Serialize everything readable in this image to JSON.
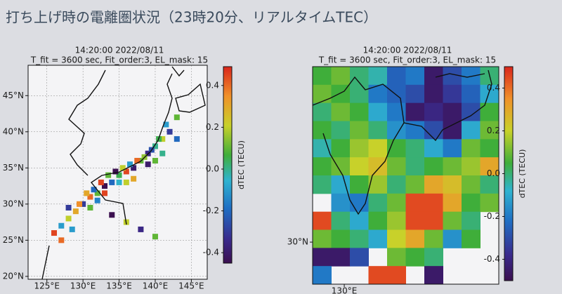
{
  "title": "打ち上げ時の電離圏状況（23時20分、リアルタイムTEC）",
  "panels": [
    {
      "time": "14:20:00 2022/08/11",
      "settings": "T_fit = 3600 sec, Fit_order:3, EL_mask: 15",
      "colorbar_label": "dTEC (TECU)",
      "clim": [
        -0.45,
        0.49
      ],
      "cticks": [
        0.4,
        0.2,
        {
          "value": 0,
          "label": "0.0"
        },
        -0.2,
        -0.4
      ],
      "xlim": [
        122.4,
        147.2
      ],
      "ylim": [
        19.6,
        49.2
      ],
      "xticks": [
        {
          "value": 125,
          "label": "125°E"
        },
        {
          "value": 130,
          "label": "130°E"
        },
        {
          "value": 135,
          "label": "135°E"
        },
        {
          "value": 140,
          "label": "140°E"
        },
        {
          "value": 145,
          "label": "145°E"
        }
      ],
      "yticks": [
        {
          "value": 45,
          "label": "45°N"
        },
        {
          "value": 40,
          "label": "40°N"
        },
        {
          "value": 35,
          "label": "35°N"
        },
        {
          "value": 30,
          "label": "30°N"
        },
        {
          "value": 25,
          "label": "25°N"
        },
        {
          "value": 20,
          "label": "20°N"
        }
      ],
      "lon": [
        126,
        127,
        128,
        129,
        130,
        131,
        132,
        133,
        134,
        135,
        136,
        137,
        138,
        139,
        140,
        141,
        142,
        143,
        130.5,
        131.5,
        132.5,
        133.5,
        134.5,
        135.5,
        136.5,
        137.5,
        138.5,
        139.5,
        140.5,
        141.5,
        128,
        129.5,
        131,
        132,
        133,
        135,
        136,
        137,
        139,
        140,
        141,
        143,
        127,
        128.5,
        134,
        136,
        138,
        140
      ],
      "lat": [
        26,
        27,
        28,
        29,
        30,
        31,
        31.5,
        32.5,
        33,
        34,
        34.5,
        35,
        36,
        37,
        38,
        39,
        40,
        42,
        31.5,
        32,
        33,
        34,
        34.5,
        35,
        35.5,
        36,
        36.5,
        37.5,
        39,
        41,
        29.5,
        30,
        29.5,
        30.5,
        31.5,
        33,
        33,
        33.5,
        35.5,
        36,
        37,
        39,
        25,
        26.5,
        28.5,
        27.5,
        26.5,
        25.5
      ],
      "dtec": [
        0.45,
        -0.1,
        0.2,
        0.3,
        -0.3,
        0.4,
        0.1,
        -0.45,
        -0.2,
        0.05,
        0.45,
        -0.4,
        0.1,
        -0.35,
        0,
        0.2,
        -0.3,
        0.1,
        0.3,
        -0.2,
        0.45,
        0.1,
        -0.45,
        0.2,
        -0.1,
        0.4,
        0.15,
        -0.25,
        0.05,
        -0.1,
        -0.3,
        0.35,
        0.1,
        -0.15,
        0.45,
        -0.05,
        0.2,
        0.3,
        -0.4,
        0.1,
        0,
        -0.2,
        0.4,
        -0.1,
        -0.45,
        0.2,
        -0.35,
        0.1
      ]
    },
    {
      "time": "14:20:00 2022/08/11",
      "settings": "T_fit = 3600 sec, Fit_order:3, EL_mask: 15",
      "colorbar_label": "dTEC (TECU)",
      "clim": [
        -0.5,
        0.5
      ],
      "cticks": [
        0.4,
        0.2,
        {
          "value": 0,
          "label": "0.0"
        },
        -0.2,
        -0.4
      ],
      "xlim": [
        129.32,
        133.32
      ],
      "ylim": [
        28.84,
        34.84
      ],
      "xticks": [
        {
          "value": 130,
          "label": "130°E"
        }
      ],
      "yticks": [
        {
          "value": 30,
          "label": "30°N"
        }
      ],
      "grid": [
        [
          0.05,
          0.1,
          0,
          -0.05,
          -0.25,
          -0.2,
          -0.45,
          -0.3,
          -0.2,
          0
        ],
        [
          0.1,
          0.05,
          0,
          -0.2,
          -0.25,
          -0.3,
          -0.45,
          -0.35,
          -0.25,
          -0.1
        ],
        [
          0,
          0.1,
          0.05,
          -0.1,
          -0.2,
          -0.45,
          -0.4,
          -0.45,
          -0.3,
          0.05
        ],
        [
          0.05,
          0,
          0.1,
          0,
          -0.15,
          -0.2,
          -0.3,
          -0.45,
          -0.1,
          0.1
        ],
        [
          -0.05,
          0.05,
          0.15,
          0.2,
          0.05,
          0,
          -0.1,
          -0.2,
          0.1,
          0.05
        ],
        [
          0.05,
          0.1,
          0.2,
          0.25,
          0.1,
          0,
          0.05,
          0.1,
          0.15,
          0.3
        ],
        [
          0,
          -0.1,
          0.05,
          0.15,
          0,
          0.1,
          0.3,
          0.25,
          0.1,
          0
        ],
        [
          null,
          -0.15,
          -0.2,
          0,
          0.1,
          0.45,
          0.45,
          0.3,
          0.05,
          0.1
        ],
        [
          0.45,
          0,
          -0.1,
          0.05,
          0.15,
          0.45,
          0.45,
          0.1,
          0,
          null
        ],
        [
          0.1,
          0.05,
          0,
          -0.1,
          0.2,
          0.3,
          0.1,
          -0.15,
          0.05,
          null
        ],
        [
          -0.45,
          -0.45,
          -0.3,
          null,
          0.1,
          0.05,
          0,
          null,
          null,
          null
        ],
        [
          -0.2,
          null,
          null,
          0.45,
          0.45,
          null,
          -0.45,
          null,
          null,
          null
        ]
      ]
    }
  ]
}
